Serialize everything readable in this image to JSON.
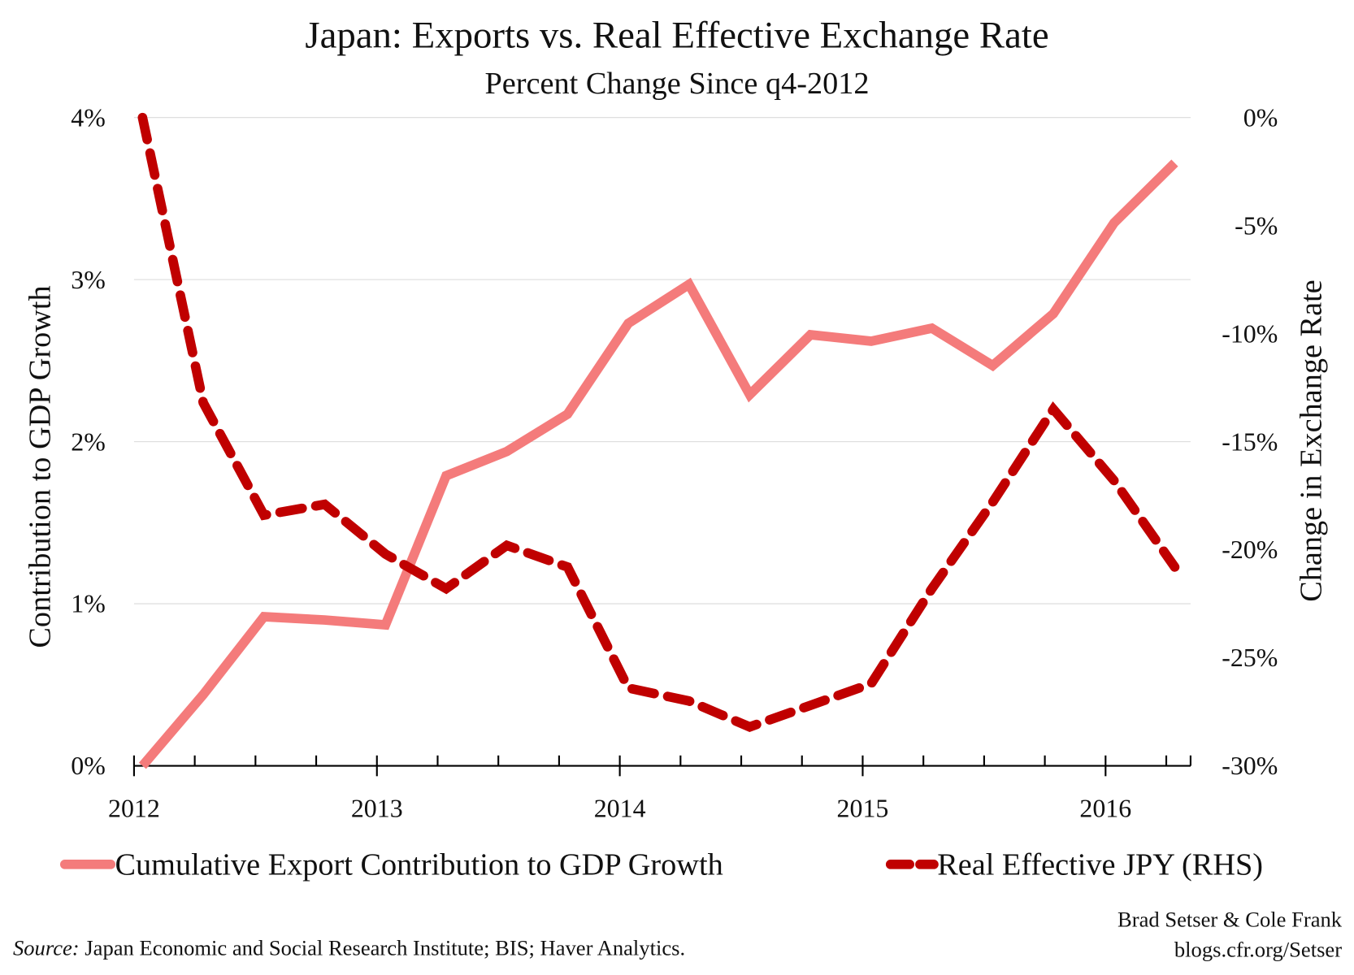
{
  "chart_data": {
    "type": "line",
    "title": "Japan: Exports vs. Real Effective Exchange Rate",
    "subtitle": "Percent Change Since q4-2012",
    "ylabel_left": "Contribution to GDP Growth",
    "ylabel_right": "Change in Exchange Rate",
    "x_ticks": [
      "2012",
      "2013",
      "2014",
      "2015",
      "2016"
    ],
    "x_range": [
      2012,
      2016.35
    ],
    "y_left_range": [
      0,
      4
    ],
    "y_left_ticks": [
      "0%",
      "1%",
      "2%",
      "3%",
      "4%"
    ],
    "y_right_range": [
      -30,
      0
    ],
    "y_right_ticks": [
      "-30%",
      "-25%",
      "-20%",
      "-15%",
      "-10%",
      "-5%",
      "0%"
    ],
    "grid": "horizontal",
    "legend_placement": "bottom",
    "x": [
      "2012-Q1",
      "2012-Q2",
      "2012-Q3",
      "2012-Q4",
      "2013-Q1",
      "2013-Q2",
      "2013-Q3",
      "2013-Q4",
      "2014-Q1",
      "2014-Q2",
      "2014-Q3",
      "2014-Q4",
      "2015-Q1",
      "2015-Q2",
      "2015-Q3",
      "2015-Q4",
      "2016-Q1",
      "2016-Q2"
    ],
    "series": [
      {
        "name": "Cumulative Export Contribution to GDP Growth",
        "axis": "left",
        "color": "#f47b7b",
        "style": "solid",
        "values": [
          0.0,
          0.44,
          0.92,
          0.9,
          0.87,
          1.79,
          1.94,
          2.17,
          2.73,
          2.97,
          2.29,
          2.66,
          2.62,
          2.7,
          2.47,
          2.79,
          3.35,
          3.72
        ]
      },
      {
        "name": "Real Effective JPY (RHS)",
        "axis": "right",
        "color": "#c00000",
        "style": "dashed",
        "values": [
          0.0,
          -13.2,
          -18.4,
          -17.9,
          -20.2,
          -21.8,
          -19.8,
          -20.8,
          -26.4,
          -27.0,
          -28.2,
          -27.2,
          -26.2,
          -21.8,
          -17.8,
          -13.5,
          -16.8,
          -20.8
        ]
      }
    ],
    "source_label": "Source:",
    "source_text": "Japan Economic and Social Research Institute; BIS; Haver Analytics.",
    "credit_line1": "Brad Setser & Cole Frank",
    "credit_line2": "blogs.cfr.org/Setser"
  }
}
